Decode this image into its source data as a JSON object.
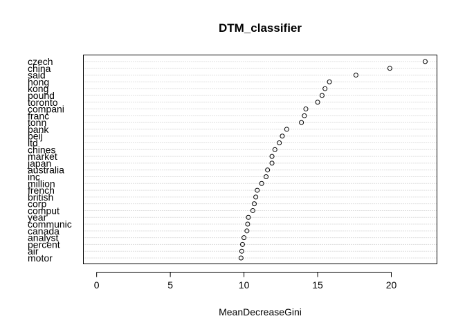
{
  "chart_data": {
    "type": "scatter",
    "title": "DTM_classifier",
    "xlabel": "MeanDecreaseGini",
    "ylabel": "",
    "xlim": [
      -0.9,
      23.1
    ],
    "x_ticks": [
      0,
      5,
      10,
      15,
      20
    ],
    "grid": "dotted horizontal",
    "legend": "none",
    "categories": [
      "czech",
      "china",
      "said",
      "hong",
      "kong",
      "pound",
      "toronto",
      "compani",
      "franc",
      "tonn",
      "bank",
      "beij",
      "ltd",
      "chines",
      "market",
      "japan",
      "australia",
      "inc",
      "million",
      "french",
      "british",
      "corp",
      "comput",
      "year",
      "communic",
      "canada",
      "analyst",
      "percent",
      "air",
      "motor"
    ],
    "values": [
      22.3,
      19.9,
      17.6,
      15.8,
      15.5,
      15.3,
      15.0,
      14.2,
      14.1,
      13.9,
      12.9,
      12.6,
      12.4,
      12.1,
      11.9,
      11.9,
      11.6,
      11.5,
      11.2,
      10.9,
      10.8,
      10.7,
      10.6,
      10.3,
      10.25,
      10.2,
      10.0,
      9.9,
      9.85,
      9.8
    ]
  }
}
